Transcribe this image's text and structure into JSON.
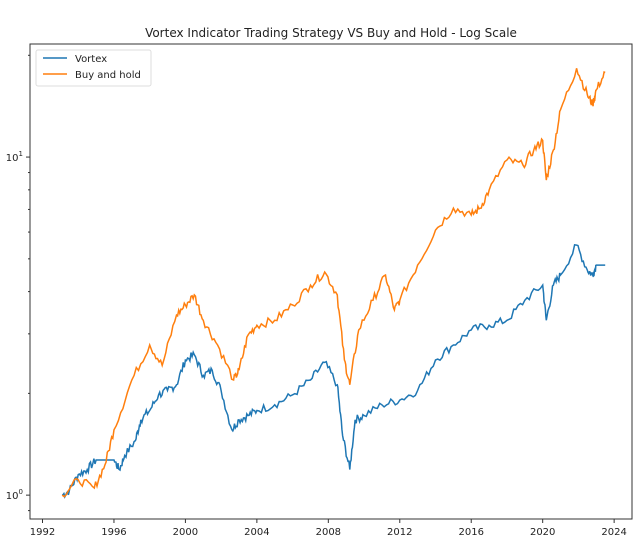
{
  "chart_data": {
    "type": "line",
    "title": "Vortex Indicator Trading Strategy VS Buy and Hold - Log Scale",
    "xlabel": "",
    "ylabel": "",
    "yscale": "log",
    "xlim": [
      1991.3,
      2025.0
    ],
    "ylim": [
      0.85,
      21.6
    ],
    "x_ticks": [
      "1992",
      "1996",
      "2000",
      "2004",
      "2008",
      "2012",
      "2016",
      "2020",
      "2024"
    ],
    "y_ticks": [
      {
        "value": 1,
        "base": "10",
        "exp": "0"
      },
      {
        "value": 10,
        "base": "10",
        "exp": "1"
      }
    ],
    "legend_position": "top-left",
    "series": [
      {
        "name": "Vortex",
        "color": "#1f77b4",
        "x": [
          1993.1,
          1993.5,
          1994,
          1994.5,
          1995,
          1996,
          1996.3,
          1996.6,
          1997.2,
          1997.5,
          1998,
          1998.5,
          1999,
          1999.5,
          2000,
          2000.5,
          2001,
          2001.5,
          2002,
          2002.6,
          2003,
          2003.5,
          2004,
          2005,
          2006,
          2007,
          2007.8,
          2008.5,
          2008.8,
          2009.2,
          2009.5,
          2010,
          2011,
          2012,
          2013,
          2014,
          2015,
          2016,
          2017,
          2018,
          2019,
          2020,
          2020.2,
          2020.6,
          2021,
          2021.9,
          2022.5,
          2022.8,
          2023,
          2023.5
        ],
        "y": [
          1.0,
          1.03,
          1.15,
          1.19,
          1.27,
          1.27,
          1.19,
          1.31,
          1.45,
          1.67,
          1.78,
          1.98,
          2.04,
          2.12,
          2.51,
          2.6,
          2.26,
          2.34,
          2.04,
          1.56,
          1.67,
          1.72,
          1.78,
          1.85,
          1.98,
          2.19,
          2.47,
          2.12,
          1.5,
          1.19,
          1.67,
          1.72,
          1.85,
          1.91,
          2.04,
          2.51,
          2.78,
          3.08,
          3.18,
          3.29,
          3.77,
          4.18,
          3.29,
          4.18,
          4.48,
          5.49,
          4.63,
          4.48,
          4.79,
          4.79
        ]
      },
      {
        "name": "Buy and hold",
        "color": "#ff7f0e",
        "x": [
          1993.1,
          1994,
          1994.9,
          1995.5,
          1996,
          1997,
          1998,
          1998.7,
          1999.5,
          2000,
          2000.5,
          2001,
          2001.8,
          2002.7,
          2003,
          2003.5,
          2004,
          2005,
          2006,
          2007,
          2007.8,
          2008.5,
          2008.9,
          2009.2,
          2009.7,
          2010.5,
          2011.2,
          2011.7,
          2012,
          2013,
          2014,
          2015,
          2016,
          2016.5,
          2017,
          2018,
          2018.9,
          2019.5,
          2020,
          2020.2,
          2020.6,
          2021,
          2021.9,
          2022.5,
          2022.8,
          2023,
          2023.5
        ],
        "y": [
          1.0,
          1.11,
          1.05,
          1.23,
          1.56,
          2.19,
          2.78,
          2.42,
          3.41,
          3.65,
          3.91,
          3.29,
          2.78,
          2.19,
          2.34,
          2.97,
          3.18,
          3.29,
          3.65,
          4.18,
          4.57,
          3.91,
          2.51,
          2.12,
          3.08,
          3.77,
          4.48,
          3.53,
          3.77,
          4.79,
          6.08,
          7.06,
          6.74,
          7.06,
          7.98,
          9.8,
          9.47,
          10.5,
          11.2,
          8.55,
          10.5,
          13.8,
          18.3,
          15.3,
          14.3,
          15.8,
          17.8
        ]
      }
    ]
  }
}
